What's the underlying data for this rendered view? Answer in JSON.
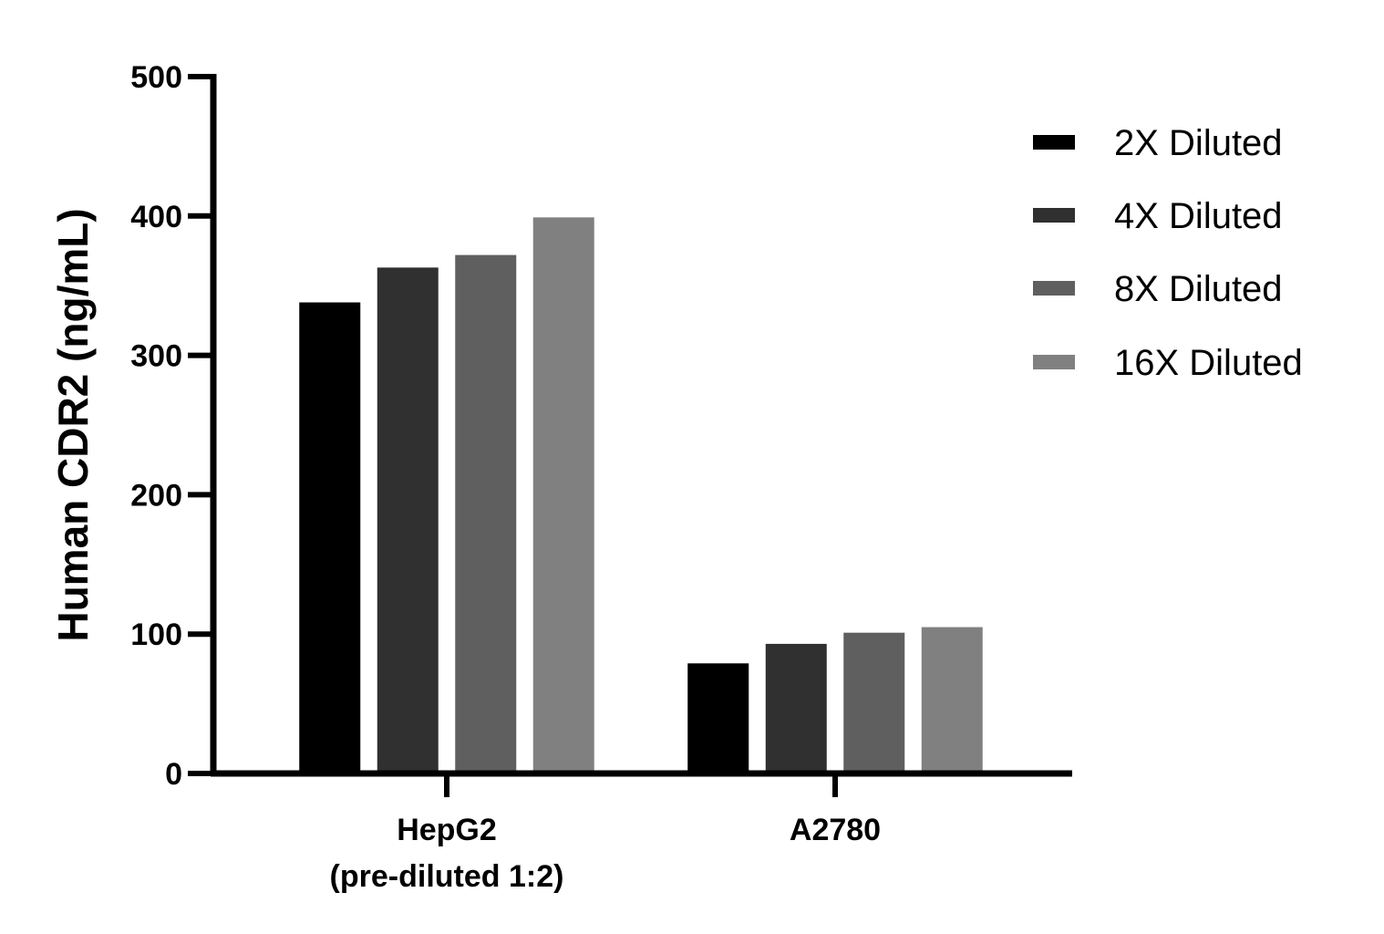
{
  "chart_data": {
    "type": "bar",
    "categories": [
      "HepG2",
      "A2780"
    ],
    "category_sublabels": [
      "(pre-diluted 1:2)",
      ""
    ],
    "series": [
      {
        "name": "2X Diluted",
        "color": "#000000",
        "values": [
          338,
          79
        ]
      },
      {
        "name": "4X Diluted",
        "color": "#303030",
        "values": [
          363,
          93
        ]
      },
      {
        "name": "8X Diluted",
        "color": "#5f5f5f",
        "values": [
          372,
          101
        ]
      },
      {
        "name": "16X Diluted",
        "color": "#808080",
        "values": [
          399,
          105
        ]
      }
    ],
    "xlabel": "",
    "ylabel": "Human CDR2 (ng/mL)",
    "ylim": [
      0,
      500
    ],
    "yticks": [
      0,
      100,
      200,
      300,
      400,
      500
    ],
    "grid": false,
    "legend_position": "right"
  }
}
